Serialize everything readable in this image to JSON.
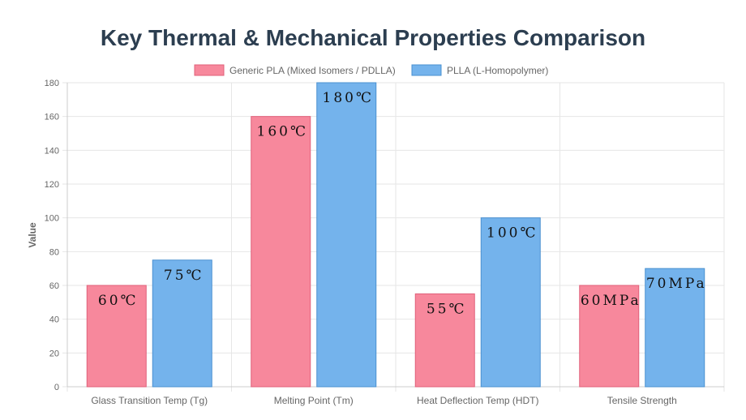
{
  "chart_data": {
    "type": "bar",
    "title": "Key Thermal & Mechanical Properties Comparison",
    "xlabel": "",
    "ylabel": "Value",
    "ylim": [
      0,
      180
    ],
    "yticks": [
      0,
      20,
      40,
      60,
      80,
      100,
      120,
      140,
      160,
      180
    ],
    "grid": true,
    "legend_position": "top",
    "categories": [
      "Glass Transition Temp (Tg)",
      "Melting Point (Tm)",
      "Heat Deflection Temp (HDT)",
      "Tensile Strength"
    ],
    "series": [
      {
        "name": "Generic PLA (Mixed Isomers / PDLLA)",
        "values": [
          60,
          160,
          55,
          60
        ],
        "labels": [
          "60℃",
          "160℃",
          "55℃",
          "60MPa"
        ],
        "color": "#f7889c",
        "border": "#e0607a"
      },
      {
        "name": "PLLA (L-Homopolymer)",
        "values": [
          75,
          180,
          100,
          70
        ],
        "labels": [
          "75℃",
          "180℃",
          "100℃",
          "70MPa"
        ],
        "color": "#74b3ec",
        "border": "#4a90d0"
      }
    ]
  }
}
